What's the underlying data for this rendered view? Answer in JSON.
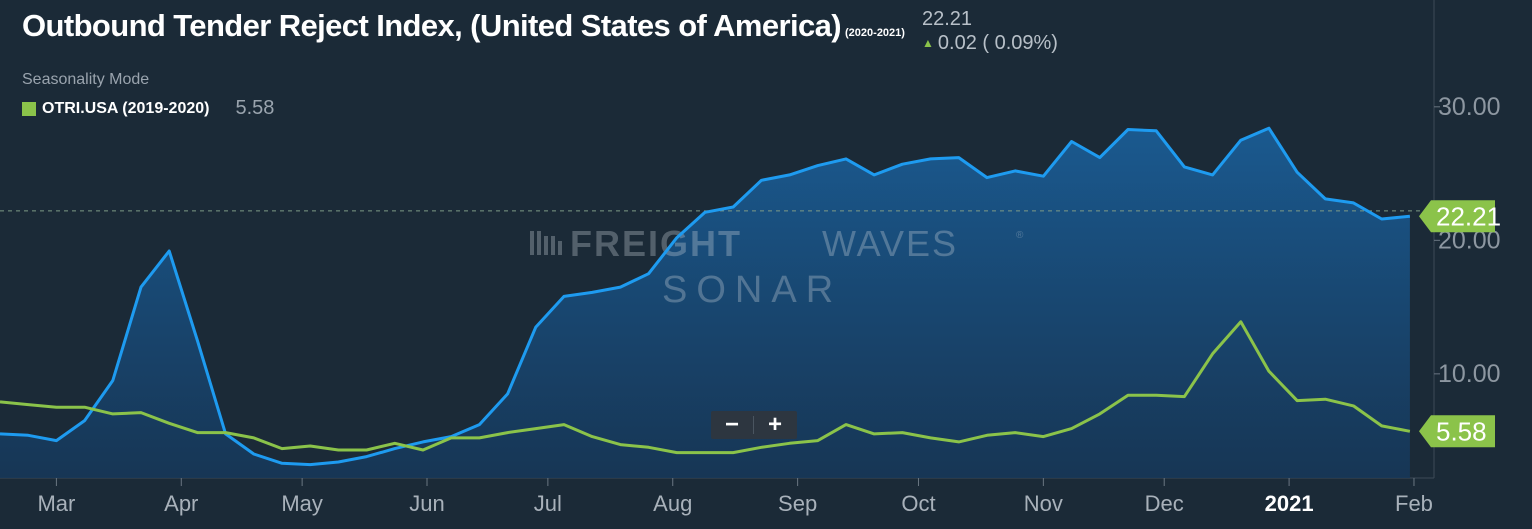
{
  "title": "Outbound Tender Reject Index, (United States of America)",
  "date_range": "(2020-2021)",
  "current_value": "22.21",
  "change_text": "0.02 ( 0.09%)",
  "up_arrow_icon": "▲",
  "mode_label": "Seasonality Mode",
  "legend": {
    "name": "OTRI.USA (2019-2020)",
    "value": "5.58",
    "color": "#8bc34a"
  },
  "watermark": {
    "line1_bold": "FREIGHT",
    "line1_light": "WAVES",
    "line2": "SONAR",
    "reg": "®"
  },
  "zoom": {
    "minus": "−",
    "plus": "+"
  },
  "colors": {
    "background": "#1b2a37",
    "primary": "#1e9bf0",
    "secondary": "#8bc34a",
    "area": "#1a5c94"
  },
  "chart_data": {
    "type": "line",
    "title": "Outbound Tender Reject Index, (United States of America)",
    "xlabel": "",
    "ylabel": "",
    "x_tick_labels": [
      "Mar",
      "Apr",
      "May",
      "Jun",
      "Jul",
      "Aug",
      "Sep",
      "Oct",
      "Nov",
      "Dec",
      "2021",
      "Feb"
    ],
    "y_tick_labels": [
      "10.00",
      "20.00",
      "30.00"
    ],
    "y_ticks": [
      10,
      20,
      30
    ],
    "ylim": [
      2.2,
      38
    ],
    "xlim": [
      "2020-02-16",
      "2021-02-02"
    ],
    "grid": false,
    "reference_line": 22.21,
    "series": [
      {
        "name": "OTRI.USA (2020-2021)",
        "color": "#1e9bf0",
        "end_label": "22.21",
        "area": true,
        "points": [
          [
            "2020-02-16",
            5.5
          ],
          [
            "2020-02-23",
            5.4
          ],
          [
            "2020-03-01",
            5.0
          ],
          [
            "2020-03-08",
            6.5
          ],
          [
            "2020-03-15",
            9.5
          ],
          [
            "2020-03-22",
            16.5
          ],
          [
            "2020-03-29",
            19.2
          ],
          [
            "2020-04-05",
            12.5
          ],
          [
            "2020-04-12",
            5.5
          ],
          [
            "2020-04-19",
            4.0
          ],
          [
            "2020-04-26",
            3.3
          ],
          [
            "2020-05-03",
            3.2
          ],
          [
            "2020-05-10",
            3.4
          ],
          [
            "2020-05-17",
            3.8
          ],
          [
            "2020-05-24",
            4.4
          ],
          [
            "2020-05-31",
            4.9
          ],
          [
            "2020-06-07",
            5.3
          ],
          [
            "2020-06-14",
            6.2
          ],
          [
            "2020-06-21",
            8.5
          ],
          [
            "2020-06-28",
            13.5
          ],
          [
            "2020-07-05",
            15.8
          ],
          [
            "2020-07-12",
            16.1
          ],
          [
            "2020-07-19",
            16.5
          ],
          [
            "2020-07-26",
            17.5
          ],
          [
            "2020-08-02",
            20.2
          ],
          [
            "2020-08-09",
            22.1
          ],
          [
            "2020-08-16",
            22.5
          ],
          [
            "2020-08-23",
            24.5
          ],
          [
            "2020-08-30",
            24.9
          ],
          [
            "2020-09-06",
            25.6
          ],
          [
            "2020-09-13",
            26.1
          ],
          [
            "2020-09-20",
            24.9
          ],
          [
            "2020-09-27",
            25.7
          ],
          [
            "2020-10-04",
            26.1
          ],
          [
            "2020-10-11",
            26.2
          ],
          [
            "2020-10-18",
            24.7
          ],
          [
            "2020-10-25",
            25.2
          ],
          [
            "2020-11-01",
            24.8
          ],
          [
            "2020-11-08",
            27.4
          ],
          [
            "2020-11-15",
            26.2
          ],
          [
            "2020-11-22",
            28.3
          ],
          [
            "2020-11-29",
            28.2
          ],
          [
            "2020-12-06",
            25.5
          ],
          [
            "2020-12-13",
            24.9
          ],
          [
            "2020-12-20",
            27.5
          ],
          [
            "2020-12-27",
            28.4
          ],
          [
            "2021-01-03",
            25.1
          ],
          [
            "2021-01-10",
            23.1
          ],
          [
            "2021-01-17",
            22.8
          ],
          [
            "2021-01-24",
            21.6
          ],
          [
            "2021-01-31",
            21.8
          ]
        ]
      },
      {
        "name": "OTRI.USA (2019-2020)",
        "color": "#8bc34a",
        "end_label": "5.58",
        "area": false,
        "points": [
          [
            "2020-02-16",
            7.9
          ],
          [
            "2020-02-23",
            7.7
          ],
          [
            "2020-03-01",
            7.5
          ],
          [
            "2020-03-08",
            7.5
          ],
          [
            "2020-03-15",
            7.0
          ],
          [
            "2020-03-22",
            7.1
          ],
          [
            "2020-03-29",
            6.3
          ],
          [
            "2020-04-05",
            5.6
          ],
          [
            "2020-04-12",
            5.6
          ],
          [
            "2020-04-19",
            5.2
          ],
          [
            "2020-04-26",
            4.4
          ],
          [
            "2020-05-03",
            4.6
          ],
          [
            "2020-05-10",
            4.3
          ],
          [
            "2020-05-17",
            4.3
          ],
          [
            "2020-05-24",
            4.8
          ],
          [
            "2020-05-31",
            4.3
          ],
          [
            "2020-06-07",
            5.2
          ],
          [
            "2020-06-14",
            5.2
          ],
          [
            "2020-06-21",
            5.6
          ],
          [
            "2020-06-28",
            5.9
          ],
          [
            "2020-07-05",
            6.2
          ],
          [
            "2020-07-12",
            5.3
          ],
          [
            "2020-07-19",
            4.7
          ],
          [
            "2020-07-26",
            4.5
          ],
          [
            "2020-08-02",
            4.1
          ],
          [
            "2020-08-09",
            4.1
          ],
          [
            "2020-08-16",
            4.1
          ],
          [
            "2020-08-23",
            4.5
          ],
          [
            "2020-08-30",
            4.8
          ],
          [
            "2020-09-06",
            5.0
          ],
          [
            "2020-09-13",
            6.2
          ],
          [
            "2020-09-20",
            5.5
          ],
          [
            "2020-09-27",
            5.6
          ],
          [
            "2020-10-04",
            5.2
          ],
          [
            "2020-10-11",
            4.9
          ],
          [
            "2020-10-18",
            5.4
          ],
          [
            "2020-10-25",
            5.6
          ],
          [
            "2020-11-01",
            5.3
          ],
          [
            "2020-11-08",
            5.9
          ],
          [
            "2020-11-15",
            7.0
          ],
          [
            "2020-11-22",
            8.4
          ],
          [
            "2020-11-29",
            8.4
          ],
          [
            "2020-12-06",
            8.3
          ],
          [
            "2020-12-13",
            11.5
          ],
          [
            "2020-12-20",
            13.9
          ],
          [
            "2020-12-27",
            10.2
          ],
          [
            "2021-01-03",
            8.0
          ],
          [
            "2021-01-10",
            8.1
          ],
          [
            "2021-01-17",
            7.6
          ],
          [
            "2021-01-24",
            6.1
          ],
          [
            "2021-01-31",
            5.7
          ]
        ]
      }
    ]
  }
}
